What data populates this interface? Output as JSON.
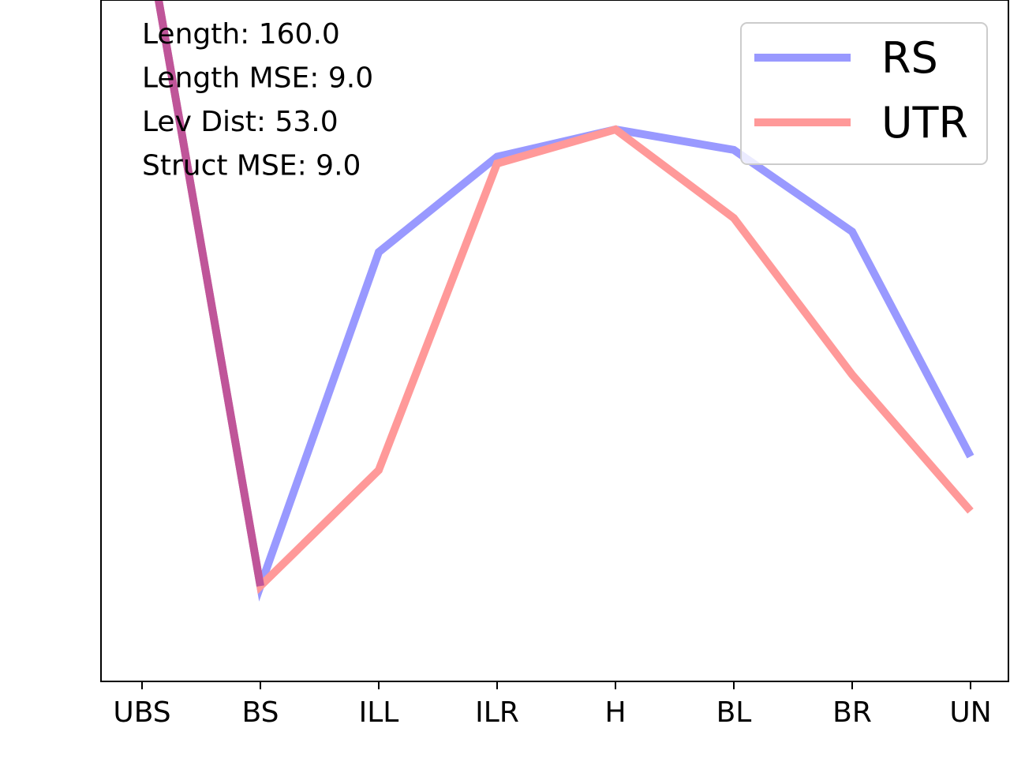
{
  "chart_data": {
    "type": "line",
    "categories": [
      "UBS",
      "BS",
      "ILL",
      "ILR",
      "H",
      "BL",
      "BR",
      "UN"
    ],
    "series": [
      {
        "name": "RS",
        "color": "#9999ff",
        "values": [
          0.57,
          0.07,
          0.315,
          0.385,
          0.405,
          0.39,
          0.33,
          0.165
        ]
      },
      {
        "name": "UTR",
        "color": "#ff9999",
        "values": [
          0.57,
          0.07,
          0.155,
          0.38,
          0.405,
          0.34,
          0.225,
          0.125
        ]
      }
    ],
    "overlap_color": "#bf5599",
    "annotations": [
      "Length: 160.0",
      "Length MSE: 9.0",
      "Lev Dist: 53.0",
      "Struct MSE: 9.0"
    ],
    "legend_position": "top-right",
    "y_ticks_shown": false,
    "grid": false,
    "ylim": [
      0,
      2.0
    ]
  }
}
